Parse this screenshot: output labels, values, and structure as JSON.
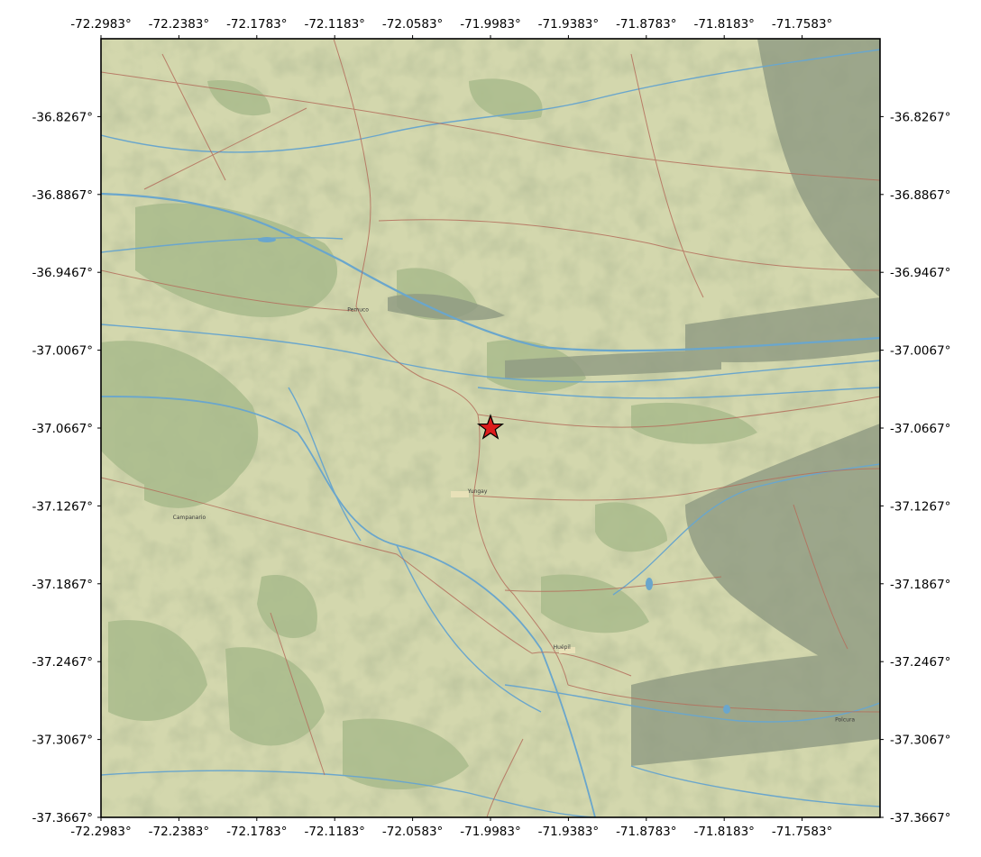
{
  "map": {
    "x_ticks": [
      "-72.2983°",
      "-72.2383°",
      "-72.1783°",
      "-72.1183°",
      "-72.0583°",
      "-71.9983°",
      "-71.9383°",
      "-71.8783°",
      "-71.8183°",
      "-71.7583°"
    ],
    "y_ticks": [
      "-36.8267°",
      "-36.8867°",
      "-36.9467°",
      "-37.0067°",
      "-37.0667°",
      "-37.1267°",
      "-37.1867°",
      "-37.2467°",
      "-37.3067°",
      "-37.3667°"
    ],
    "x_tick_values": [
      -72.2983,
      -72.2383,
      -72.1783,
      -72.1183,
      -72.0583,
      -71.9983,
      -71.9383,
      -71.8783,
      -71.8183,
      -71.7583
    ],
    "y_tick_values": [
      -36.8267,
      -36.8867,
      -36.9467,
      -37.0067,
      -37.0667,
      -37.1267,
      -37.1867,
      -37.2467,
      -37.3067,
      -37.3667
    ],
    "lon_range": [
      -72.2983,
      -71.6983
    ],
    "lat_range": [
      -37.3667,
      -36.7667
    ],
    "marker": {
      "lon": -71.9983,
      "lat": -37.0667,
      "icon": "star-icon",
      "color": "#dd1c1c"
    },
    "places": [
      {
        "name": "Pemuco",
        "lon": -72.1003,
        "lat": -36.9767
      },
      {
        "name": "Yungay",
        "lon": -72.0083,
        "lat": -37.1167
      },
      {
        "name": "Campanario",
        "lon": -72.2303,
        "lat": -37.1367
      },
      {
        "name": "Huépil",
        "lon": -71.9433,
        "lat": -37.2367
      },
      {
        "name": "Polcura",
        "lon": -71.7253,
        "lat": -37.2927
      }
    ],
    "colors": {
      "land": "#d3d7ad",
      "forest": "#a9bb8c",
      "mountain": "#8f9a82",
      "river": "#6aa6cc",
      "road": "#b46e5c",
      "frame": "#000000"
    }
  }
}
